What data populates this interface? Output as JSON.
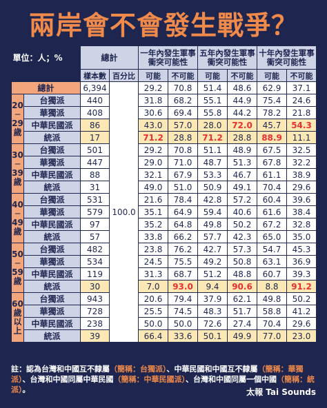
{
  "title": "兩岸會不會發生戰爭？",
  "unit": "單位：人；%",
  "headers": {
    "total": "總計",
    "col1": "一年內發生軍事衝突可能性",
    "col2": "五年內發生軍事衝突可能性",
    "col3": "十年內發生軍事衝突可能性",
    "sample": "樣本數",
    "percent": "百分比",
    "possible": "可能",
    "impossible": "不可能"
  },
  "percent_value": "100.0",
  "total_row": {
    "label": "總計",
    "n": "6,394",
    "v": [
      "29.2",
      "70.8",
      "51.4",
      "48.6",
      "62.9",
      "37.1"
    ]
  },
  "groups": [
    {
      "age": [
        "20",
        "─",
        "29",
        "歲"
      ],
      "rows": [
        {
          "label": "台獨派",
          "n": "440",
          "v": [
            "31.8",
            "68.2",
            "55.1",
            "44.9",
            "75.4",
            "24.6"
          ],
          "hl": false,
          "red": []
        },
        {
          "label": "華獨派",
          "n": "408",
          "v": [
            "30.6",
            "69.4",
            "55.8",
            "44.2",
            "78.2",
            "21.8"
          ],
          "hl": false,
          "red": []
        },
        {
          "label": "中華民國派",
          "n": "86",
          "v": [
            "43.0",
            "57.0",
            "28.0",
            "72.0",
            "45.7",
            "54.3"
          ],
          "hl": true,
          "red": [
            3,
            5
          ]
        },
        {
          "label": "統派",
          "n": "17",
          "v": [
            "71.2",
            "28.8",
            "71.2",
            "28.8",
            "88.9",
            "11.1"
          ],
          "hl": true,
          "red": [
            0,
            2,
            4
          ]
        }
      ]
    },
    {
      "age": [
        "30",
        "─",
        "39",
        "歲"
      ],
      "rows": [
        {
          "label": "台獨派",
          "n": "501",
          "v": [
            "29.2",
            "70.8",
            "51.1",
            "48.9",
            "67.5",
            "32.5"
          ],
          "hl": false,
          "red": []
        },
        {
          "label": "華獨派",
          "n": "447",
          "v": [
            "29.0",
            "71.0",
            "48.7",
            "51.3",
            "67.8",
            "32.2"
          ],
          "hl": false,
          "red": []
        },
        {
          "label": "中華民國派",
          "n": "88",
          "v": [
            "32.1",
            "67.9",
            "53.3",
            "46.7",
            "61.1",
            "38.9"
          ],
          "hl": false,
          "red": []
        },
        {
          "label": "統派",
          "n": "31",
          "v": [
            "49.0",
            "51.0",
            "50.9",
            "49.1",
            "70.4",
            "29.6"
          ],
          "hl": false,
          "red": []
        }
      ]
    },
    {
      "age": [
        "40",
        "─",
        "49",
        "歲"
      ],
      "rows": [
        {
          "label": "台獨派",
          "n": "531",
          "v": [
            "21.6",
            "78.4",
            "42.8",
            "57.2",
            "60.4",
            "39.6"
          ],
          "hl": false,
          "red": []
        },
        {
          "label": "華獨派",
          "n": "579",
          "v": [
            "35.1",
            "64.9",
            "59.4",
            "40.6",
            "61.6",
            "38.4"
          ],
          "hl": false,
          "red": []
        },
        {
          "label": "中華民國派",
          "n": "97",
          "v": [
            "35.2",
            "64.8",
            "49.8",
            "50.2",
            "67.2",
            "32.8"
          ],
          "hl": false,
          "red": []
        },
        {
          "label": "統派",
          "n": "57",
          "v": [
            "33.8",
            "66.2",
            "57.7",
            "42.3",
            "65.0",
            "35.0"
          ],
          "hl": false,
          "red": []
        }
      ]
    },
    {
      "age": [
        "50",
        "─",
        "59",
        "歲"
      ],
      "rows": [
        {
          "label": "台獨派",
          "n": "482",
          "v": [
            "23.8",
            "76.2",
            "42.7",
            "57.3",
            "54.7",
            "45.3"
          ],
          "hl": false,
          "red": []
        },
        {
          "label": "華獨派",
          "n": "534",
          "v": [
            "24.5",
            "75.5",
            "49.2",
            "50.8",
            "63.1",
            "36.9"
          ],
          "hl": false,
          "red": []
        },
        {
          "label": "中華民國派",
          "n": "119",
          "v": [
            "31.3",
            "68.7",
            "51.2",
            "48.8",
            "60.7",
            "39.3"
          ],
          "hl": false,
          "red": []
        },
        {
          "label": "統派",
          "n": "30",
          "v": [
            "7.0",
            "93.0",
            "9.4",
            "90.6",
            "8.8",
            "91.2"
          ],
          "hl": true,
          "red": [
            1,
            3,
            5
          ]
        }
      ]
    },
    {
      "age": [
        "60",
        "歲",
        "以",
        "上"
      ],
      "rows": [
        {
          "label": "台獨派",
          "n": "943",
          "v": [
            "20.6",
            "79.4",
            "37.9",
            "62.1",
            "49.8",
            "50.2"
          ],
          "hl": false,
          "red": []
        },
        {
          "label": "華獨派",
          "n": "728",
          "v": [
            "25.5",
            "74.5",
            "48.3",
            "51.7",
            "58.8",
            "41.2"
          ],
          "hl": false,
          "red": []
        },
        {
          "label": "中華民國派",
          "n": "238",
          "v": [
            "50.0",
            "50.0",
            "72.6",
            "27.4",
            "70.4",
            "29.6"
          ],
          "hl": false,
          "red": []
        },
        {
          "label": "統派",
          "n": "39",
          "v": [
            "66.4",
            "33.6",
            "50.1",
            "49.9",
            "77.0",
            "23.0"
          ],
          "hl": true,
          "red": []
        }
      ]
    }
  ],
  "note": {
    "prefix": "註：",
    "p1": "認為台灣和中國互不隸屬",
    "k1": "（簡稱：台獨派）",
    "p2": "、中華民國和中國互不隸屬",
    "k2": "（簡稱：華獨派）",
    "p3": "、台灣和中國同屬中華民國",
    "k3": "（簡稱：中華民國派）",
    "p4": "、台灣和中國同屬一個中國",
    "k4": "（簡稱：統派）",
    "p5": "。"
  },
  "brand": "太報 Tai Sounds"
}
